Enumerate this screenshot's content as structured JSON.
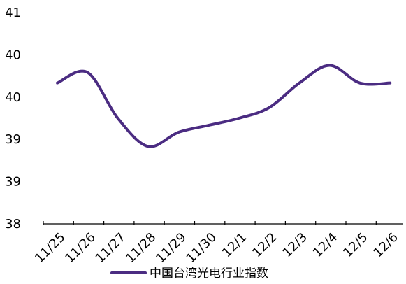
{
  "chart_data": {
    "type": "line",
    "categories": [
      "11/25",
      "11/26",
      "11/27",
      "11/28",
      "11/29",
      "11/30",
      "12/1",
      "12/2",
      "12/3",
      "12/4",
      "12/5",
      "12/6"
    ],
    "y_tick_labels": [
      "41",
      "40",
      "40",
      "39",
      "39",
      "38"
    ],
    "series": [
      {
        "name": "中国台湾光电行业指数",
        "color": "#4B2C82",
        "values": [
          40.0,
          40.15,
          39.5,
          39.1,
          39.3,
          39.4,
          39.5,
          39.65,
          40.0,
          40.25,
          40.0,
          40.0
        ]
      }
    ],
    "ylim": [
      38,
      41
    ],
    "grid": false,
    "legend_position": "bottom"
  }
}
